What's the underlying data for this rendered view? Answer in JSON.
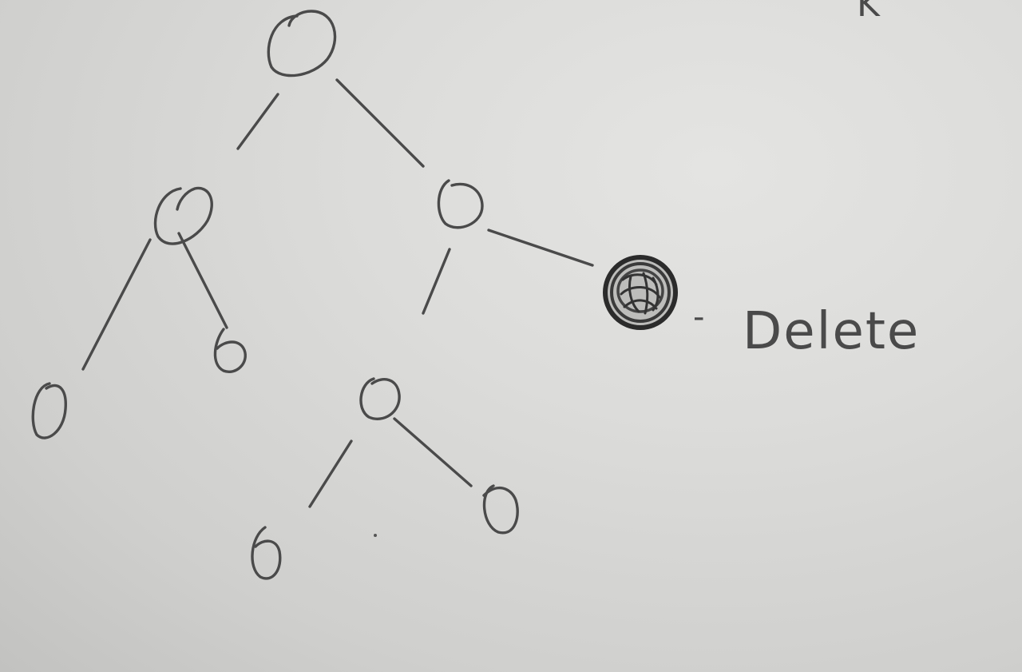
{
  "diagram": {
    "type": "tree",
    "corner_mark": "K",
    "colors": {
      "paper": "#dcdcda",
      "pencil": "#4a4a4a",
      "dark_fill": "#2e2e2e"
    },
    "nodes": [
      {
        "id": "root",
        "shape": "circle-icon"
      },
      {
        "id": "left-child",
        "shape": "circle-icon"
      },
      {
        "id": "right-child",
        "shape": "circle-icon"
      },
      {
        "id": "left-left-leaf",
        "shape": "circle-icon"
      },
      {
        "id": "left-right-leaf",
        "shape": "circle-icon"
      },
      {
        "id": "right-left-child",
        "shape": "circle-icon"
      },
      {
        "id": "right-right-node",
        "shape": "filled-circle-icon",
        "highlighted": true
      },
      {
        "id": "rl-left-leaf",
        "shape": "circle-icon"
      },
      {
        "id": "rl-right-leaf",
        "shape": "circle-icon"
      }
    ],
    "edges": [
      [
        "root",
        "left-child"
      ],
      [
        "root",
        "right-child"
      ],
      [
        "left-child",
        "left-left-leaf"
      ],
      [
        "left-child",
        "left-right-leaf"
      ],
      [
        "right-child",
        "right-left-child"
      ],
      [
        "right-child",
        "right-right-node"
      ],
      [
        "right-left-child",
        "rl-left-leaf"
      ],
      [
        "right-left-child",
        "rl-right-leaf"
      ]
    ],
    "annotation": {
      "target": "right-right-node",
      "dash": "-",
      "text": "Delete"
    }
  }
}
